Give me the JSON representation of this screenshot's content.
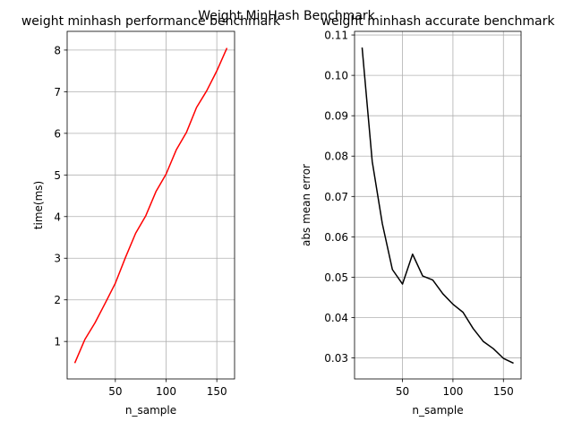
{
  "suptitle": "Weight MinHash Benchmark",
  "chart_data": [
    {
      "type": "line",
      "title": "weight minhash performance benchmark",
      "xlabel": "n_sample",
      "ylabel": "time(ms)",
      "xlim": [
        2.5,
        167.5
      ],
      "ylim": [
        0.1,
        8.45
      ],
      "xticks": [
        50,
        100,
        150
      ],
      "yticks": [
        1,
        2,
        3,
        4,
        5,
        6,
        7,
        8
      ],
      "grid": true,
      "color": "#ff0000",
      "x": [
        10,
        20,
        30,
        40,
        50,
        60,
        70,
        80,
        90,
        100,
        110,
        120,
        130,
        140,
        150,
        160
      ],
      "values": [
        0.48,
        1.05,
        1.45,
        1.92,
        2.4,
        3.02,
        3.6,
        4.02,
        4.6,
        5.02,
        5.6,
        6.02,
        6.62,
        7.02,
        7.5,
        8.05
      ]
    },
    {
      "type": "line",
      "title": "weight minhash accurate benchmark",
      "xlabel": "n_sample",
      "ylabel": "abs mean error",
      "xlim": [
        2.5,
        167.5
      ],
      "ylim": [
        0.0248,
        0.1109
      ],
      "xticks": [
        50,
        100,
        150
      ],
      "yticks": [
        0.03,
        0.04,
        0.05,
        0.06,
        0.07,
        0.08,
        0.09,
        0.1,
        0.11
      ],
      "ytick_labels": [
        "0.03",
        "0.04",
        "0.05",
        "0.06",
        "0.07",
        "0.08",
        "0.09",
        "0.10",
        "0.11"
      ],
      "grid": true,
      "color": "#000000",
      "x": [
        10,
        20,
        30,
        40,
        50,
        60,
        70,
        80,
        90,
        100,
        110,
        120,
        130,
        140,
        150,
        160
      ],
      "values": [
        0.1069,
        0.0787,
        0.0633,
        0.0519,
        0.0483,
        0.0557,
        0.0503,
        0.0493,
        0.0459,
        0.0433,
        0.0413,
        0.0373,
        0.0341,
        0.0323,
        0.0299,
        0.0287
      ]
    }
  ]
}
